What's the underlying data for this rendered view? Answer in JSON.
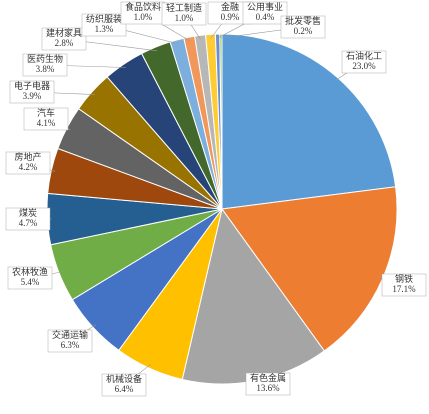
{
  "chart_data": {
    "type": "pie",
    "categories": [
      "石油化工",
      "钢铁",
      "有色金属",
      "机械设备",
      "交通运输",
      "农林牧渔",
      "煤炭",
      "房地产",
      "汽车",
      "电子电器",
      "医药生物",
      "建材家具",
      "纺织服装",
      "食品饮料",
      "轻工制造",
      "金融",
      "公用事业",
      "批发零售"
    ],
    "values": [
      23.0,
      17.1,
      13.6,
      6.4,
      6.3,
      5.4,
      4.7,
      4.2,
      4.1,
      3.9,
      3.8,
      2.8,
      1.3,
      1.0,
      1.0,
      0.9,
      0.4,
      0.2
    ],
    "value_labels": [
      "23.0%",
      "17.1%",
      "13.6%",
      "6.4%",
      "6.3%",
      "5.4%",
      "4.7%",
      "4.2%",
      "4.1%",
      "3.9%",
      "3.8%",
      "2.8%",
      "1.3%",
      "1.0%",
      "1.0%",
      "0.9%",
      "0.4%",
      "0.2%"
    ],
    "colors": [
      "#5b9bd5",
      "#ed7d31",
      "#a5a5a5",
      "#ffc000",
      "#4472c4",
      "#70ad47",
      "#255e91",
      "#9e480e",
      "#636363",
      "#997300",
      "#264478",
      "#43682b",
      "#7cafdd",
      "#f1975a",
      "#b7b7b7",
      "#ffcd33",
      "#698ed0",
      "#8cc168"
    ]
  }
}
